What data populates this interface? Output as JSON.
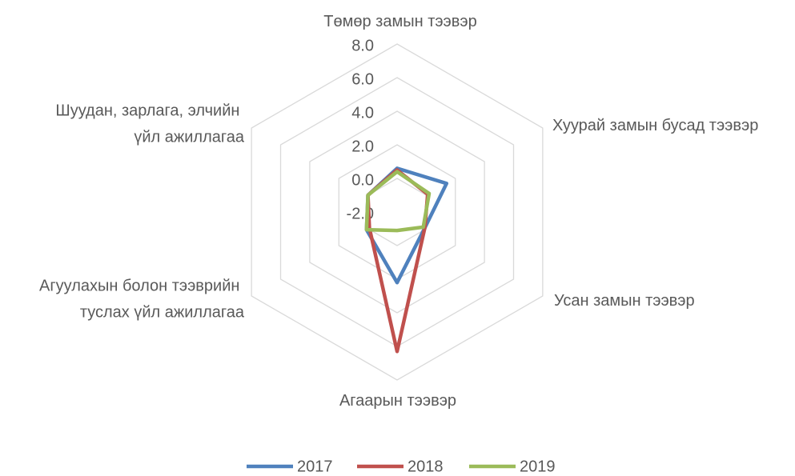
{
  "chart_data": {
    "type": "radar",
    "categories": [
      "Төмөр замын тээвэр",
      "Хуурай замын бусад тээвэр",
      "Усан замын тээвэр",
      "Агаарын тээвэр",
      "Агуулахын болон тээврийн туслах үйл ажиллагаа",
      "Шуудан, зарлага, элчийн үйл ажиллагаа"
    ],
    "series": [
      {
        "name": "2017",
        "color": "#4f81bd",
        "values": [
          0.6,
          1.4,
          -0.1,
          2.2,
          0.1,
          0.0
        ]
      },
      {
        "name": "2018",
        "color": "#c0504d",
        "values": [
          0.5,
          0.1,
          -0.1,
          6.3,
          -0.1,
          0.0
        ]
      },
      {
        "name": "2019",
        "color": "#9bbb59",
        "values": [
          0.4,
          0.2,
          -0.2,
          -0.9,
          0.1,
          0.0
        ]
      }
    ],
    "ylim": [
      -2,
      8
    ],
    "yticks": [
      {
        "value": -2,
        "label": "-2.0"
      },
      {
        "value": 0,
        "label": "0.0"
      },
      {
        "value": 2,
        "label": "2.0"
      },
      {
        "value": 4,
        "label": "4.0"
      },
      {
        "value": 6,
        "label": "6.0"
      },
      {
        "value": 8,
        "label": "8.0"
      }
    ],
    "grid": true,
    "legend": "bottom"
  }
}
